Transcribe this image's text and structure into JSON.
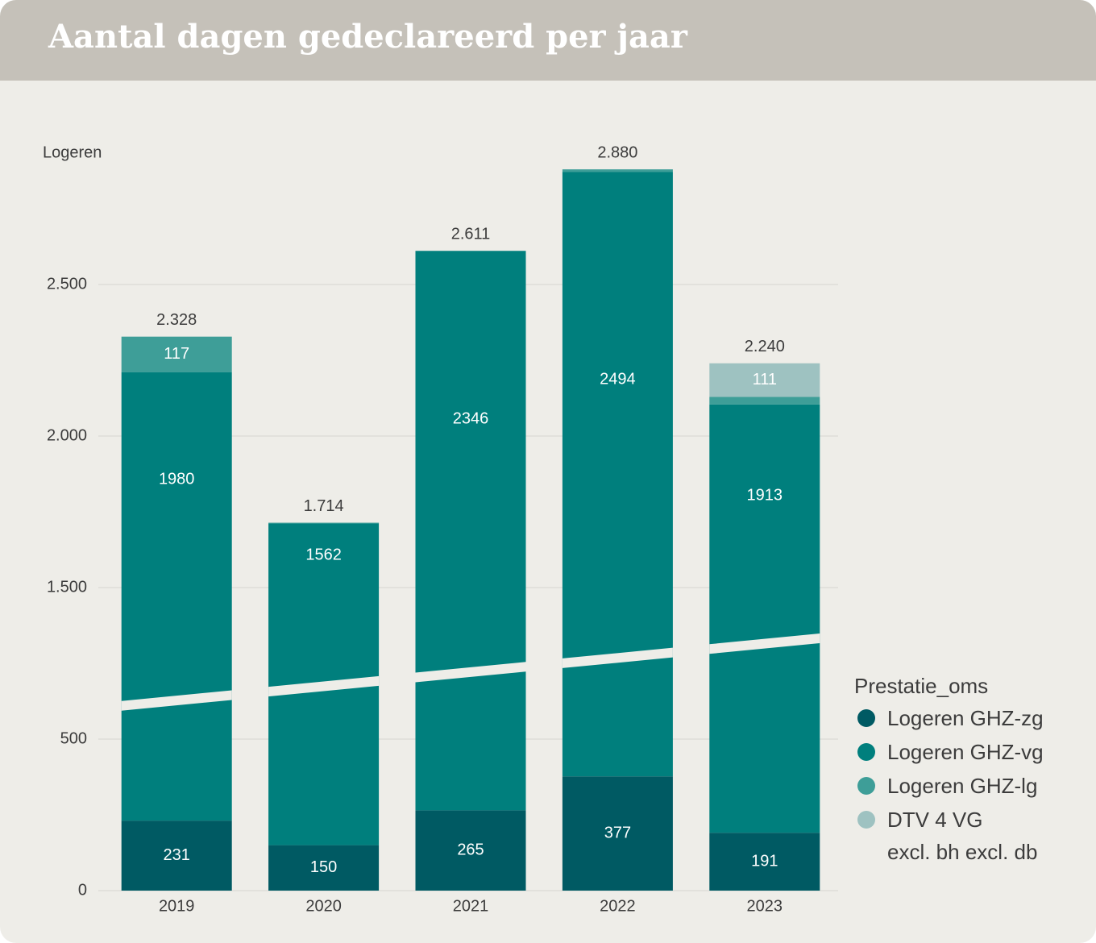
{
  "chart_data": {
    "type": "bar",
    "stacked": true,
    "title": "Aantal dagen gedeclareerd per jaar",
    "y_label": "Logeren",
    "legend_title": "Prestatie_oms",
    "categories": [
      "2019",
      "2020",
      "2021",
      "2022",
      "2023"
    ],
    "series": [
      {
        "name": "Logeren GHZ-zg",
        "color": "#005a63",
        "values": [
          231,
          150,
          265,
          377,
          191
        ],
        "value_labels": [
          "231",
          "150",
          "265",
          "377",
          "191"
        ]
      },
      {
        "name": "Logeren GHZ-vg",
        "color": "#007f7d",
        "values": [
          1980,
          1562,
          2346,
          2494,
          1913
        ],
        "value_labels": [
          "1980",
          "1562",
          "2346",
          "2494",
          "1913"
        ]
      },
      {
        "name": "Logeren GHZ-lg",
        "color": "#3e9e98",
        "values": [
          117,
          2,
          null,
          9,
          25
        ],
        "value_labels": [
          "117",
          null,
          null,
          null,
          null
        ]
      },
      {
        "name": "DTV 4 VG\nexcl. bh excl. db",
        "color": "#9ec2c1",
        "values": [
          null,
          null,
          null,
          null,
          111
        ],
        "value_labels": [
          null,
          null,
          null,
          null,
          "111"
        ]
      }
    ],
    "totals": {
      "values": [
        2328,
        1714,
        2611,
        2880,
        2240
      ],
      "value_labels": [
        "2.328",
        "1.714",
        "2.611",
        "2.880",
        "2.240"
      ]
    },
    "ylim": [
      0,
      3000
    ],
    "ybreak": [
      500,
      1500
    ],
    "yticks": [
      0,
      500,
      {
        "value": 1500,
        "label": "1.500"
      },
      {
        "value": 2000,
        "label": "2.000"
      },
      {
        "value": 2500,
        "label": "2.500"
      }
    ],
    "grid": true
  }
}
